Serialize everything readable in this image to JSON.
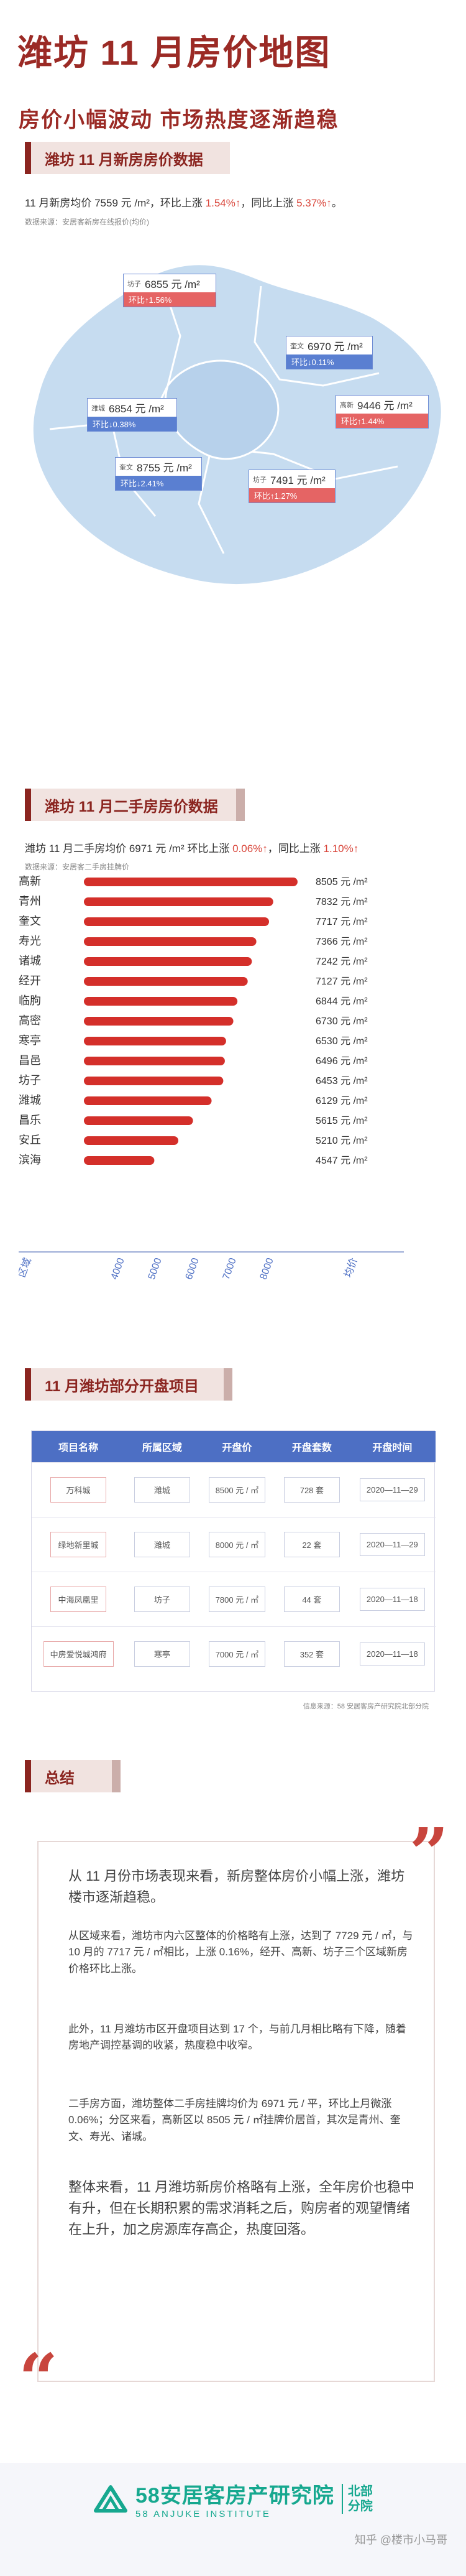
{
  "header": {
    "title": "潍坊 11 月房价地图",
    "subtitle": "房价小幅波动  市场热度逐渐趋稳"
  },
  "new_house": {
    "section_title": "潍坊 11 月新房房价数据",
    "intro_a": "11 月新房均价 7559 元 /m²，环比上涨 ",
    "intro_mom": "1.54%↑",
    "intro_b": "，同比上涨 ",
    "intro_yoy": "5.37%↑",
    "intro_c": "。",
    "source": "数据来源：安居客新房在线报价(均价)",
    "districts": [
      {
        "name": "坊子",
        "price": "6855 元 /m²",
        "change": "环比↑1.56%",
        "dir": "up"
      },
      {
        "name": "奎文",
        "price": "6970 元 /m²",
        "change": "环比↓0.11%",
        "dir": "down"
      },
      {
        "name": "潍城",
        "price": "6854 元 /m²",
        "change": "环比↓0.38%",
        "dir": "down"
      },
      {
        "name": "高新",
        "price": "9446 元 /m²",
        "change": "环比↑1.44%",
        "dir": "up"
      },
      {
        "name": "奎文",
        "price": "8755 元 /m²",
        "change": "环比↓2.41%",
        "dir": "down"
      },
      {
        "name": "坊子",
        "price": "7491 元 /m²",
        "change": "环比↑1.27%",
        "dir": "up"
      }
    ]
  },
  "second_hand": {
    "section_title": "潍坊 11 月二手房房价数据",
    "intro_a": "潍坊 11 月二手房均价 6971 元 /m² 环比上涨 ",
    "intro_mom": "0.06%↑",
    "intro_b": "，同比上涨 ",
    "intro_yoy": "1.10%↑",
    "source": "数据来源：安居客二手房挂牌价"
  },
  "chart_data": {
    "type": "bar",
    "orientation": "horizontal",
    "categories": [
      "高新",
      "青州",
      "奎文",
      "寿光",
      "诸城",
      "经开",
      "临朐",
      "高密",
      "寒亭",
      "昌邑",
      "坊子",
      "潍城",
      "昌乐",
      "安丘",
      "滨海"
    ],
    "values": [
      8505,
      7832,
      7717,
      7366,
      7242,
      7127,
      6844,
      6730,
      6530,
      6496,
      6453,
      6129,
      5615,
      5210,
      4547
    ],
    "value_labels": [
      "8505 元 /m²",
      "7832 元 /m²",
      "7717 元 /m²",
      "7366 元 /m²",
      "7242 元 /m²",
      "7127 元 /m²",
      "6844 元 /m²",
      "6730 元 /m²",
      "6530 元 /m²",
      "6496 元 /m²",
      "6453 元 /m²",
      "6129 元 /m²",
      "5615 元 /m²",
      "5210 元 /m²",
      "4547 元 /m²"
    ],
    "x_ticks": [
      "4000",
      "5000",
      "6000",
      "7000",
      "8000"
    ],
    "xlim": [
      2600,
      9000
    ],
    "xlabel_left": "区域",
    "xlabel_right": "均价",
    "bar_color": "#d42f2a"
  },
  "projects": {
    "section_title": "11 月潍坊部分开盘项目",
    "headers": [
      "项目名称",
      "所属区域",
      "开盘价",
      "开盘套数",
      "开盘时间"
    ],
    "rows": [
      [
        "万科城",
        "潍城",
        "8500 元 / ㎡",
        "728 套",
        "2020—11—29"
      ],
      [
        "绿地新里城",
        "潍城",
        "8000 元 / ㎡",
        "22 套",
        "2020—11—29"
      ],
      [
        "中海凤凰里",
        "坊子",
        "7800 元 / ㎡",
        "44 套",
        "2020—11—18"
      ],
      [
        "中房爱悦城鸿府",
        "寒亭",
        "7000 元 / ㎡",
        "352 套",
        "2020—11—18"
      ]
    ],
    "note": "信息来源：58 安居客房产研究院北部分院"
  },
  "summary": {
    "section_title": "总结",
    "p1": "从 11 月份市场表现来看，新房整体房价小幅上涨，潍坊楼市逐渐趋稳。",
    "p2": "从区域来看，潍坊市内六区整体的价格略有上涨，达到了 7729 元 / ㎡，与 10 月的 7717 元 / ㎡相比，上涨 0.16%，经开、高新、坊子三个区域新房价格环比上涨。",
    "p3": "此外，11 月潍坊市区开盘项目达到 17 个，与前几月相比略有下降，随着房地产调控基调的收紧，热度稳中收窄。",
    "p4": "二手房方面，潍坊整体二手房挂牌均价为 6971 元 / 平，环比上月微涨 0.06%；分区来看，高新区以 8505 元 / ㎡挂牌价居首，其次是青州、奎文、寿光、诸城。",
    "p5": "整体来看，11 月潍坊新房价格略有上涨，全年房价也稳中有升，但在长期积累的需求消耗之后，购房者的观望情绪在上升，加之房源库存高企，热度回落。"
  },
  "footer": {
    "logo_cn": "58安居客房产研究院",
    "logo_en": "58 ANJUKE INSTITUTE",
    "logo_side_1": "北部",
    "logo_side_2": "分院",
    "watermark": "知乎 @楼市小马哥"
  },
  "colors": {
    "brand_red": "#9b2a25",
    "up": "#e56464",
    "down": "#5a7fd1",
    "table_header": "#4d6fc4",
    "logo_green": "#16a88f"
  }
}
